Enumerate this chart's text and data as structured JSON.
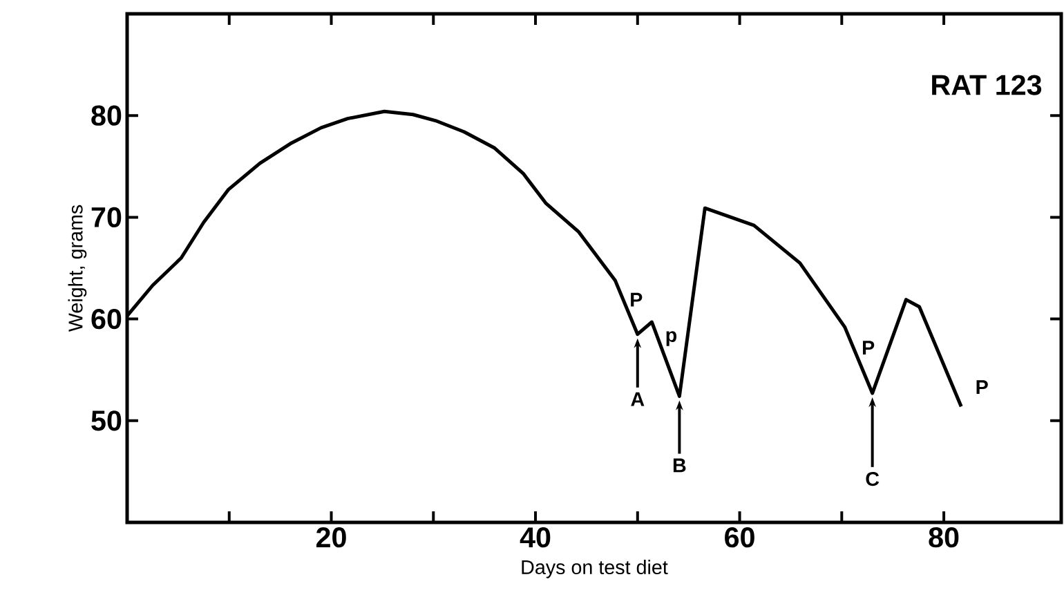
{
  "chart_data": {
    "type": "line",
    "title": "RAT 123",
    "xlabel": "Days on test diet",
    "ylabel": "Weight, grams",
    "x": [
      0,
      2.5,
      5.3,
      7.5,
      9.9,
      13,
      16.1,
      19,
      21.6,
      25.2,
      28,
      30.2,
      33,
      36,
      38.8,
      41,
      44.2,
      47.8,
      50,
      51.4,
      54.1,
      56.6,
      61.4,
      65.9,
      70.3,
      73,
      76.3,
      77.6,
      81.7
    ],
    "values": [
      60.3,
      63.3,
      66,
      69.5,
      72.7,
      75.3,
      77.3,
      78.8,
      79.7,
      80.4,
      80.1,
      79.5,
      78.4,
      76.8,
      74.3,
      71.4,
      68.6,
      63.8,
      58.5,
      59.7,
      52.4,
      70.9,
      69.2,
      65.5,
      59.2,
      52.7,
      61.9,
      61.2,
      51.4
    ],
    "color": "#000000",
    "marker": "none",
    "line_style": "solid",
    "xlim": [
      0,
      91.5
    ],
    "ylim": [
      40,
      90
    ],
    "xticks": [
      {
        "value": 10,
        "label": null
      },
      20,
      {
        "value": 30,
        "label": null
      },
      40,
      {
        "value": 50,
        "label": null
      },
      60,
      {
        "value": 70,
        "label": null
      },
      80
    ],
    "yticks": [
      50,
      60,
      70,
      80
    ],
    "annotations": [
      {
        "text": "P",
        "x": 50,
        "y": 58.5
      },
      {
        "text": "p",
        "x": 51.4,
        "y": 59.7
      },
      {
        "text": "P",
        "x": 73,
        "y": 52.7
      },
      {
        "text": "P",
        "x": 81.7,
        "y": 51.4
      },
      {
        "text": "A",
        "x": 50,
        "y": 58.5
      },
      {
        "text": "B",
        "x": 54.1,
        "y": 52.4
      },
      {
        "text": "C",
        "x": 73,
        "y": 52.7
      }
    ]
  }
}
